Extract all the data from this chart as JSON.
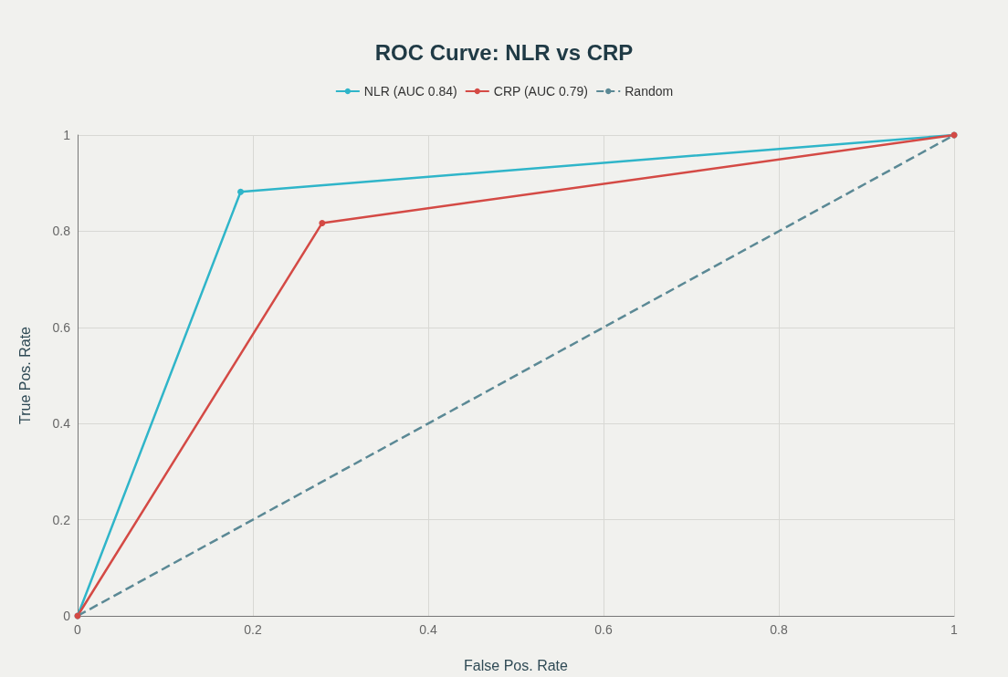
{
  "chart_data": {
    "type": "line",
    "title": "ROC Curve: NLR vs CRP",
    "xlabel": "False Pos. Rate",
    "ylabel": "True Pos. Rate",
    "series": [
      {
        "name": "NLR (AUC 0.84)",
        "color": "#2fb5c9",
        "x": [
          0,
          0.186,
          1
        ],
        "values": [
          0,
          0.882,
          1
        ],
        "marker": "circle",
        "line_style": "solid"
      },
      {
        "name": "CRP (AUC 0.79)",
        "color": "#d44a45",
        "x": [
          0,
          0.279,
          1
        ],
        "values": [
          0,
          0.817,
          1
        ],
        "marker": "circle",
        "line_style": "solid"
      },
      {
        "name": "Random",
        "color": "#5b8995",
        "x": [
          0,
          1
        ],
        "values": [
          0,
          1
        ],
        "marker": "none",
        "line_style": "dashed"
      }
    ],
    "xlim": [
      0,
      1
    ],
    "xticks": [
      0,
      0.2,
      0.4,
      0.6,
      0.8,
      1
    ],
    "ylim": [
      0,
      1
    ],
    "yticks": [
      0,
      0.2,
      0.4,
      0.6,
      0.8,
      1
    ],
    "grid": true,
    "legend": "top"
  }
}
